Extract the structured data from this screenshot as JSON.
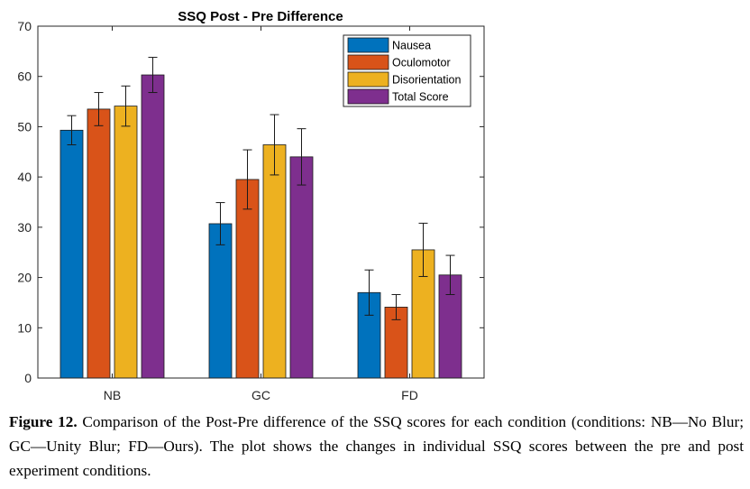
{
  "chart_data": {
    "type": "bar",
    "title": "SSQ Post - Pre Difference",
    "categories": [
      "NB",
      "GC",
      "FD"
    ],
    "ylim": [
      0,
      70
    ],
    "yticks": [
      0,
      10,
      20,
      30,
      40,
      50,
      60,
      70
    ],
    "legend_position": "top-right",
    "series": [
      {
        "name": "Nausea",
        "color": "#0072BD",
        "values": [
          49.3,
          30.7,
          17.0
        ],
        "error": [
          2.9,
          4.2,
          4.5
        ]
      },
      {
        "name": "Oculomotor",
        "color": "#D95319",
        "values": [
          53.5,
          39.5,
          14.1
        ],
        "error": [
          3.3,
          5.9,
          2.5
        ]
      },
      {
        "name": "Disorientation",
        "color": "#EDB120",
        "values": [
          54.1,
          46.4,
          25.5
        ],
        "error": [
          4.0,
          6.0,
          5.3
        ]
      },
      {
        "name": "Total Score",
        "color": "#7E2F8E",
        "values": [
          60.3,
          44.0,
          20.5
        ],
        "error": [
          3.5,
          5.6,
          3.9
        ]
      }
    ]
  },
  "caption": {
    "label": "Figure 12.",
    "text": "Comparison of the Post-Pre difference of the SSQ scores for each condition (conditions: NB—No Blur; GC—Unity Blur; FD—Ours). The plot shows the changes in individual SSQ scores between the pre and post experiment conditions."
  }
}
